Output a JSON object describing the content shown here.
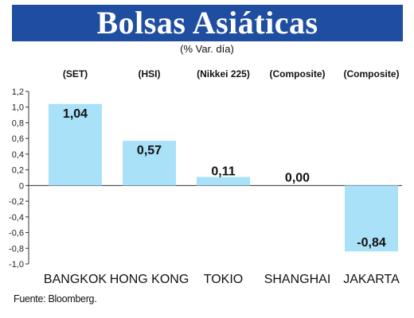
{
  "header": {
    "title": "Bolsas Asiáticas",
    "subtitle": "(% Var. día)"
  },
  "footer": {
    "source": "Fuente: Bloomberg."
  },
  "colors": {
    "banner": "#1f4ea1",
    "bar": "#a8e1f8",
    "axis": "#333333"
  },
  "chart_data": {
    "type": "bar",
    "title": "Bolsas Asiáticas",
    "subtitle": "(% Var. día)",
    "categories": [
      "BANGKOK",
      "HONG KONG",
      "TOKIO",
      "SHANGHAI",
      "JAKARTA"
    ],
    "indices": [
      "(SET)",
      "(HSI)",
      "(Nikkei 225)",
      "(Composite)",
      "(Composite)"
    ],
    "values": [
      1.04,
      0.57,
      0.11,
      0.0,
      -0.84
    ],
    "value_labels": [
      "1,04",
      "0,57",
      "0,11",
      "0,00",
      "-0,84"
    ],
    "yticks": [
      1.2,
      1.0,
      0.8,
      0.6,
      0.4,
      0.2,
      0,
      -0.2,
      -0.4,
      -0.6,
      -0.8,
      -1.0
    ],
    "ytick_labels": [
      "1,2",
      "1,0",
      "0,8",
      "0,6",
      "0,4",
      "0,2",
      "0",
      "-0,2",
      "-0,4",
      "-0,6",
      "-0,8",
      "-1,0"
    ],
    "ylim": [
      -1.0,
      1.2
    ],
    "grid": false,
    "legend": "none"
  }
}
